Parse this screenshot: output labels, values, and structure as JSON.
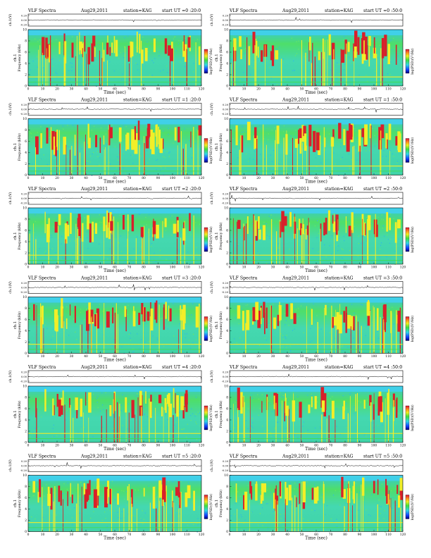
{
  "figure": {
    "title_prefix": "VLF Spectra",
    "date": "Aug29,2011",
    "station": "station=KAG",
    "start_label": "start  UT  =",
    "xlabel": "Time  (sec)",
    "ylabel_top": "ch.1(V)",
    "ylabel_spec_line1": "ch.1",
    "ylabel_spec_line2": "Frequency  (kHz)",
    "colorbar_label": "log(PSD)(V²/Hz)"
  },
  "colors": {
    "cool_bg": "#3fd4c8",
    "green": "#3fe040",
    "yellow": "#f2ee28",
    "red": "#d8202a",
    "band_cyan": "#40d0e8"
  },
  "chart_data": [
    {
      "type": "heatmap",
      "panel": "row1-left",
      "start_ut": "0 :20:0",
      "x_range": [
        0,
        120
      ],
      "freq_range_khz": [
        0,
        10
      ],
      "wave_yticks": [
        "0.20",
        "0.00",
        "-0.20"
      ],
      "xticks": [
        "0",
        "10",
        "20",
        "30",
        "40",
        "50",
        "60",
        "70",
        "80",
        "90",
        "100",
        "110",
        "120"
      ],
      "yticks": [
        "0",
        "2",
        "4",
        "6",
        "8",
        "10"
      ]
    },
    {
      "type": "heatmap",
      "panel": "row1-right",
      "start_ut": "0 :50:0",
      "x_range": [
        0,
        120
      ],
      "freq_range_khz": [
        0,
        10
      ],
      "wave_yticks": [
        "0.20",
        "0.00",
        "-0.20"
      ],
      "xticks": [
        "0",
        "10",
        "20",
        "30",
        "40",
        "50",
        "60",
        "70",
        "80",
        "90",
        "100",
        "110",
        "120"
      ],
      "yticks": [
        "0",
        "2",
        "4",
        "6",
        "8",
        "10"
      ]
    },
    {
      "type": "heatmap",
      "panel": "row2-left",
      "start_ut": "1 :20:0",
      "x_range": [
        0,
        120
      ],
      "freq_range_khz": [
        0,
        10
      ],
      "wave_yticks": [
        "0.20",
        "0.00",
        "-0.20"
      ],
      "xticks": [
        "0",
        "10",
        "20",
        "30",
        "40",
        "50",
        "60",
        "70",
        "80",
        "90",
        "100",
        "110",
        "120"
      ],
      "yticks": [
        "0",
        "2",
        "4",
        "6",
        "8",
        "10"
      ]
    },
    {
      "type": "heatmap",
      "panel": "row2-right",
      "start_ut": "1 :50:0",
      "x_range": [
        0,
        120
      ],
      "freq_range_khz": [
        0,
        10
      ],
      "wave_yticks": [
        "0.20",
        "0.00",
        "-0.20"
      ],
      "xticks": [
        "0",
        "10",
        "20",
        "30",
        "40",
        "50",
        "60",
        "70",
        "80",
        "90",
        "100",
        "110",
        "120"
      ],
      "yticks": [
        "0",
        "2",
        "4",
        "6",
        "8",
        "10"
      ]
    },
    {
      "type": "heatmap",
      "panel": "row3-left",
      "start_ut": "2 :20:0",
      "x_range": [
        0,
        120
      ],
      "freq_range_khz": [
        0,
        10
      ],
      "wave_yticks": [
        "0.20",
        "0.00",
        "-0.20"
      ],
      "xticks": [
        "0",
        "10",
        "20",
        "30",
        "40",
        "50",
        "60",
        "70",
        "80",
        "90",
        "100",
        "110",
        "120"
      ],
      "yticks": [
        "0",
        "2",
        "4",
        "6",
        "8",
        "10"
      ]
    },
    {
      "type": "heatmap",
      "panel": "row3-right",
      "start_ut": "2 :50:0",
      "x_range": [
        0,
        120
      ],
      "freq_range_khz": [
        0,
        10
      ],
      "wave_yticks": [
        "0.20",
        "0.00",
        "-0.20"
      ],
      "xticks": [
        "0",
        "10",
        "20",
        "30",
        "40",
        "50",
        "60",
        "70",
        "80",
        "90",
        "100",
        "110",
        "120"
      ],
      "yticks": [
        "0",
        "2",
        "4",
        "6",
        "8",
        "10"
      ]
    },
    {
      "type": "heatmap",
      "panel": "row4-left",
      "start_ut": "3 :20:0",
      "x_range": [
        0,
        120
      ],
      "freq_range_khz": [
        0,
        10
      ],
      "wave_yticks": [
        "0.20",
        "0.00",
        "-0.20"
      ],
      "xticks": [
        "0",
        "10",
        "20",
        "30",
        "40",
        "50",
        "60",
        "70",
        "80",
        "90",
        "100",
        "110",
        "120"
      ],
      "yticks": [
        "0",
        "2",
        "4",
        "6",
        "8",
        "10"
      ]
    },
    {
      "type": "heatmap",
      "panel": "row4-right",
      "start_ut": "3 :50:0",
      "x_range": [
        0,
        120
      ],
      "freq_range_khz": [
        0,
        10
      ],
      "wave_yticks": [
        "0.20",
        "0.00",
        "-0.20"
      ],
      "xticks": [
        "0",
        "10",
        "20",
        "30",
        "40",
        "50",
        "60",
        "70",
        "80",
        "90",
        "100",
        "110",
        "120"
      ],
      "yticks": [
        "0",
        "2",
        "4",
        "6",
        "8",
        "10"
      ]
    },
    {
      "type": "heatmap",
      "panel": "row5-left",
      "start_ut": "4 :20:0",
      "x_range": [
        0,
        120
      ],
      "freq_range_khz": [
        0,
        10
      ],
      "wave_yticks": [
        "0.20",
        "0.00",
        "-0.20"
      ],
      "xticks": [
        "0",
        "10",
        "20",
        "30",
        "40",
        "50",
        "60",
        "70",
        "80",
        "90",
        "100",
        "110",
        "120"
      ],
      "yticks": [
        "0",
        "2",
        "4",
        "6",
        "8",
        "10"
      ]
    },
    {
      "type": "heatmap",
      "panel": "row5-right",
      "start_ut": "4 :50:0",
      "x_range": [
        0,
        120
      ],
      "freq_range_khz": [
        0,
        10
      ],
      "wave_yticks": [
        "0.20",
        "0.00",
        "-0.20"
      ],
      "xticks": [
        "0",
        "10",
        "20",
        "30",
        "40",
        "50",
        "60",
        "70",
        "80",
        "90",
        "100",
        "110",
        "120"
      ],
      "yticks": [
        "0",
        "2",
        "4",
        "6",
        "8",
        "10"
      ]
    },
    {
      "type": "heatmap",
      "panel": "row6-left",
      "start_ut": "5 :20:0",
      "x_range": [
        0,
        120
      ],
      "freq_range_khz": [
        0,
        10
      ],
      "wave_yticks": [
        "0.20",
        "0.00",
        "-0.20"
      ],
      "xticks": [
        "0",
        "10",
        "20",
        "30",
        "40",
        "50",
        "60",
        "70",
        "80",
        "90",
        "100",
        "110",
        "120"
      ],
      "yticks": [
        "0",
        "2",
        "4",
        "6",
        "8",
        "10"
      ]
    },
    {
      "type": "heatmap",
      "panel": "row6-right",
      "start_ut": "5 :50:0",
      "x_range": [
        0,
        120
      ],
      "freq_range_khz": [
        0,
        10
      ],
      "wave_yticks": [
        "0.20",
        "0.00",
        "-0.20"
      ],
      "xticks": [
        "0",
        "10",
        "20",
        "30",
        "40",
        "50",
        "60",
        "70",
        "80",
        "90",
        "100",
        "110",
        "120"
      ],
      "yticks": [
        "0",
        "2",
        "4",
        "6",
        "8",
        "10"
      ]
    }
  ]
}
